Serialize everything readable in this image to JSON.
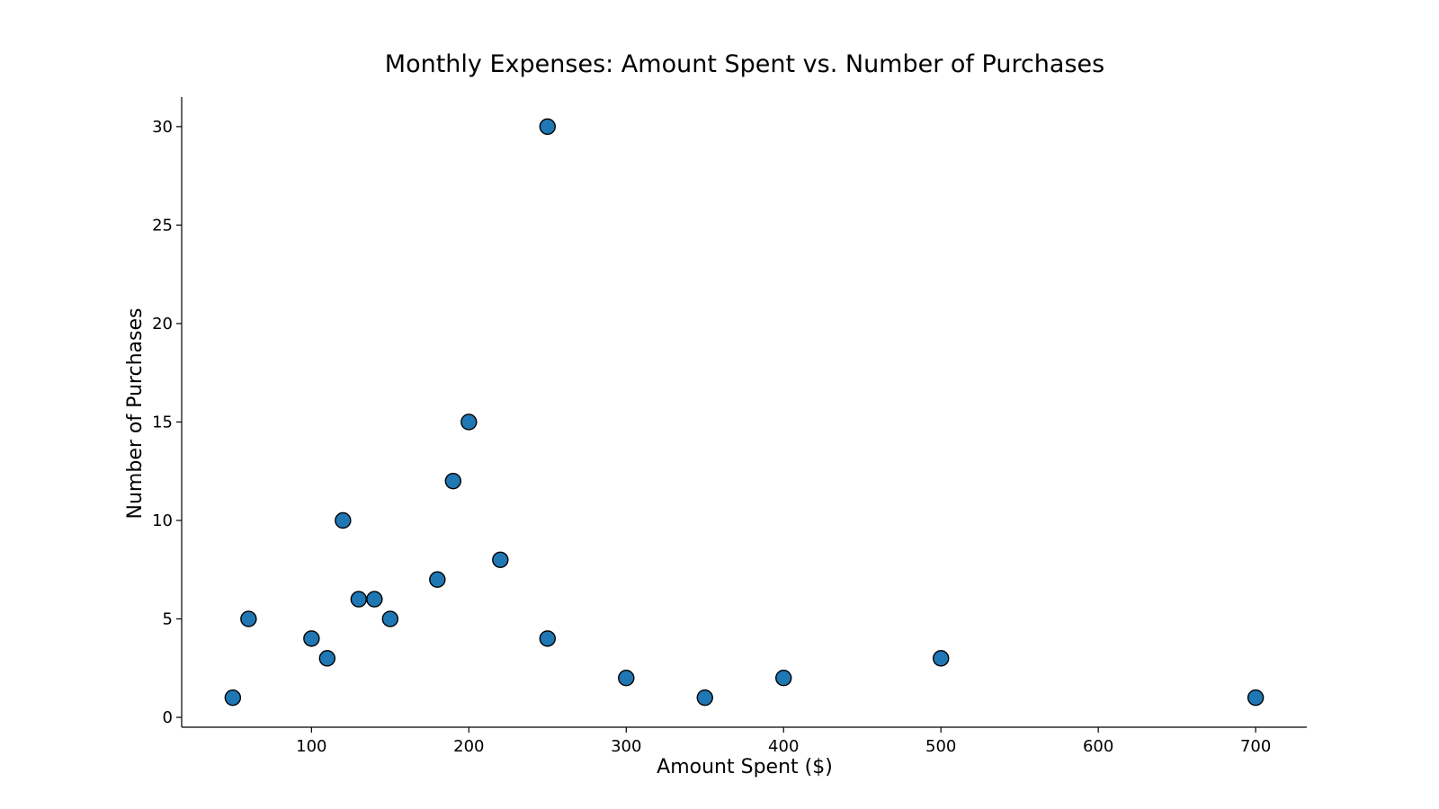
{
  "chart_data": {
    "type": "scatter",
    "title": "Monthly Expenses: Amount Spent vs. Number of Purchases",
    "xlabel": "Amount Spent ($)",
    "ylabel": "Number of Purchases",
    "xlim": [
      17.5,
      732.5
    ],
    "ylim": [
      -0.5,
      31.5
    ],
    "xticks": [
      100,
      200,
      300,
      400,
      500,
      600,
      700
    ],
    "yticks": [
      0,
      5,
      10,
      15,
      20,
      25,
      30
    ],
    "grid": false,
    "legend": "none",
    "marker_color": "#1f77b4",
    "marker_edge_color": "#000000",
    "points": [
      {
        "x": 50,
        "y": 1
      },
      {
        "x": 60,
        "y": 5
      },
      {
        "x": 100,
        "y": 4
      },
      {
        "x": 110,
        "y": 3
      },
      {
        "x": 120,
        "y": 10
      },
      {
        "x": 130,
        "y": 6
      },
      {
        "x": 140,
        "y": 6
      },
      {
        "x": 150,
        "y": 5
      },
      {
        "x": 180,
        "y": 7
      },
      {
        "x": 190,
        "y": 12
      },
      {
        "x": 200,
        "y": 15
      },
      {
        "x": 220,
        "y": 8
      },
      {
        "x": 250,
        "y": 30
      },
      {
        "x": 250,
        "y": 4
      },
      {
        "x": 300,
        "y": 2
      },
      {
        "x": 350,
        "y": 1
      },
      {
        "x": 400,
        "y": 2
      },
      {
        "x": 500,
        "y": 3
      },
      {
        "x": 700,
        "y": 1
      }
    ]
  }
}
